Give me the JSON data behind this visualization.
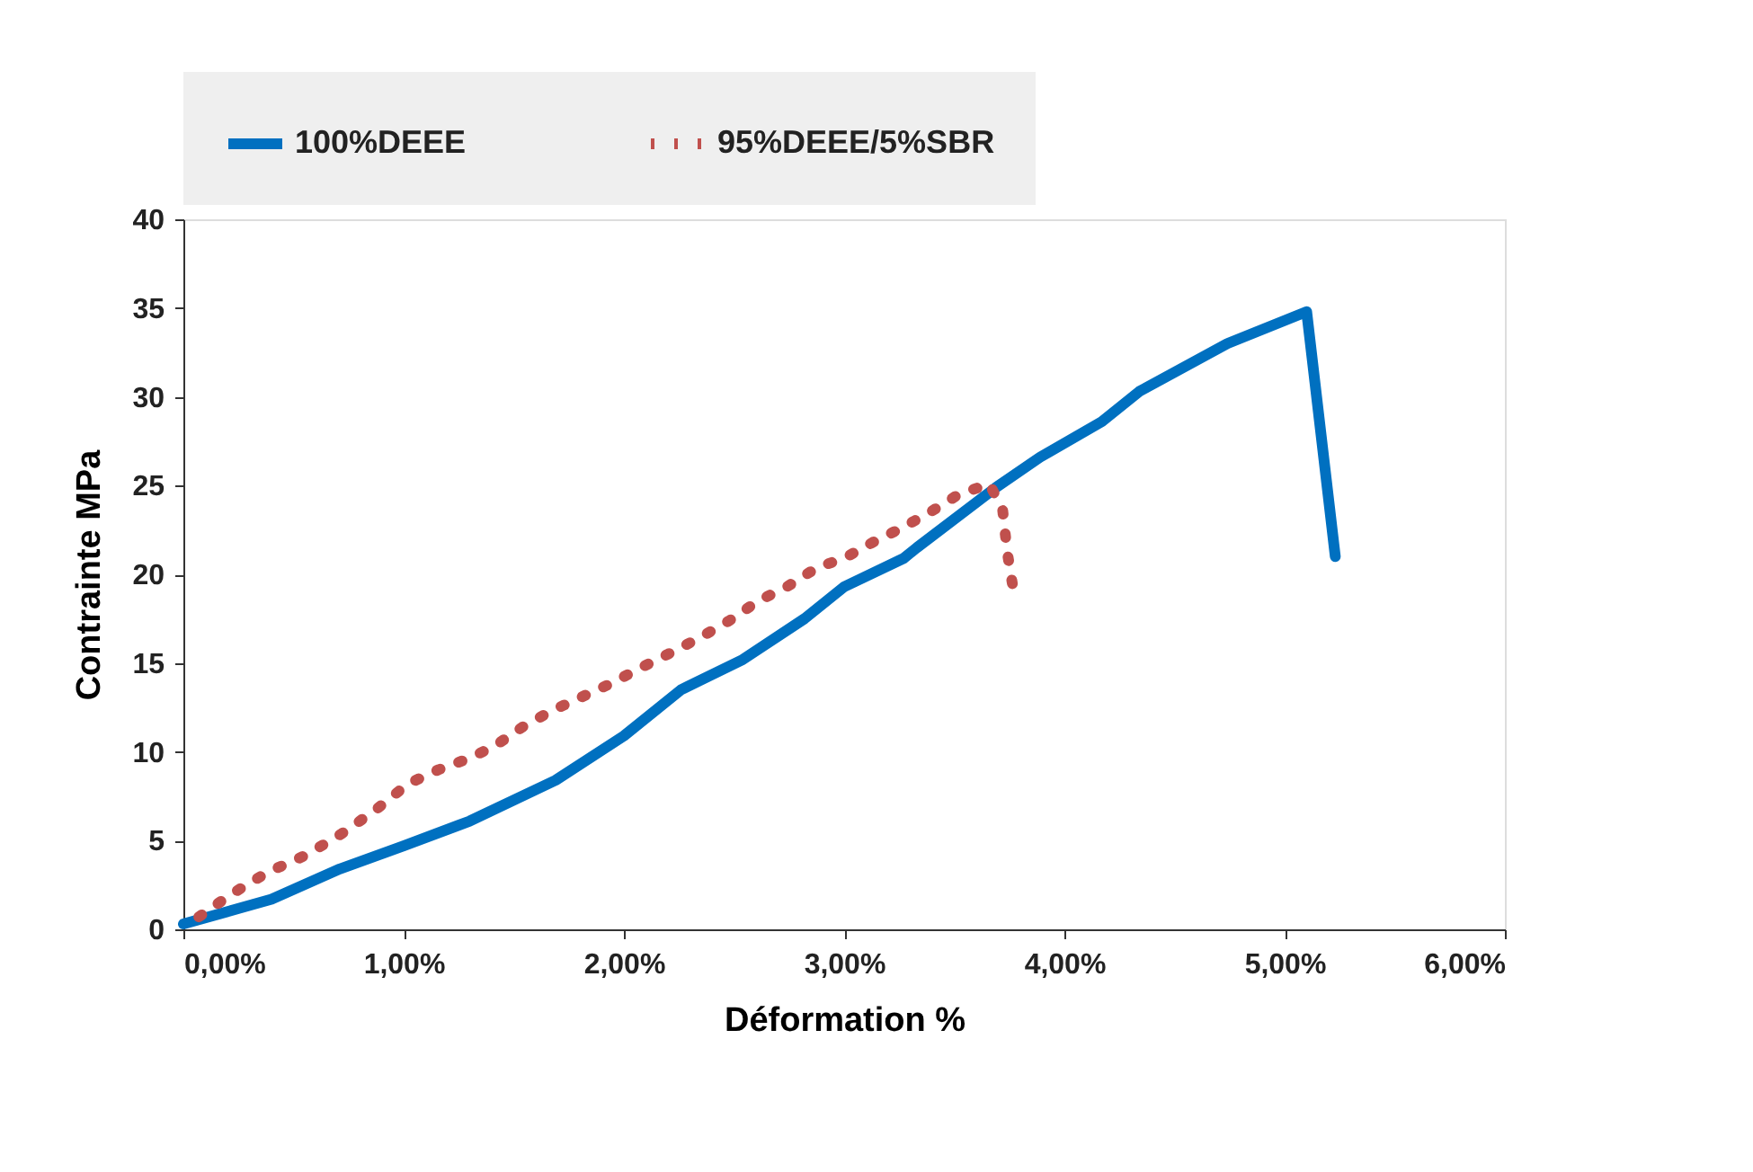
{
  "chart_data": {
    "type": "line",
    "xlabel": "Déformation %",
    "ylabel": "Contrainte MPa",
    "xlim": [
      0,
      6
    ],
    "xticks": [
      {
        "value": 0,
        "label": "0,00%"
      },
      {
        "value": 1,
        "label": "1,00%"
      },
      {
        "value": 2,
        "label": "2,00%"
      },
      {
        "value": 3,
        "label": "3,00%"
      },
      {
        "value": 4,
        "label": "4,00%"
      },
      {
        "value": 5,
        "label": "5,00%"
      },
      {
        "value": 6,
        "label": "6,00%"
      }
    ],
    "ylim": [
      0,
      40
    ],
    "yticks": [
      0,
      5,
      10,
      15,
      20,
      25,
      30,
      35,
      40
    ],
    "grid": false,
    "legend": "top",
    "series": [
      {
        "name": "100%DEEE",
        "color": "#0070c0",
        "line_style": "solid",
        "x": [
          0,
          0.4,
          0.71,
          1.0,
          1.3,
          1.69,
          2.0,
          2.26,
          2.54,
          2.82,
          3.0,
          3.27,
          3.33,
          3.69,
          3.89,
          4.17,
          4.34,
          4.74,
          5.1,
          5.23
        ],
        "values": [
          0.3,
          1.7,
          3.4,
          4.7,
          6.1,
          8.4,
          10.9,
          13.5,
          15.2,
          17.5,
          19.3,
          20.9,
          21.5,
          24.9,
          26.6,
          28.6,
          30.3,
          33.0,
          34.8,
          21.0
        ]
      },
      {
        "name": "95%DEEE/5%SBR",
        "color": "#c0504d",
        "line_style": "dotted",
        "x": [
          0.07,
          0.22,
          0.38,
          0.56,
          0.72,
          0.87,
          1.02,
          1.16,
          1.29,
          1.41,
          1.54,
          1.67,
          1.81,
          1.95,
          2.07,
          2.2,
          2.34,
          2.48,
          2.61,
          2.74,
          2.88,
          3.0,
          3.13,
          3.26,
          3.39,
          3.52,
          3.66,
          3.72,
          3.74,
          3.77
        ],
        "values": [
          0.7,
          2.0,
          3.2,
          4.2,
          5.4,
          6.7,
          8.2,
          9.0,
          9.6,
          10.3,
          11.4,
          12.3,
          13.1,
          13.9,
          14.7,
          15.5,
          16.4,
          17.4,
          18.5,
          19.3,
          20.4,
          20.9,
          21.8,
          22.6,
          23.5,
          24.5,
          25.1,
          23.6,
          21.3,
          19.0
        ]
      }
    ]
  }
}
